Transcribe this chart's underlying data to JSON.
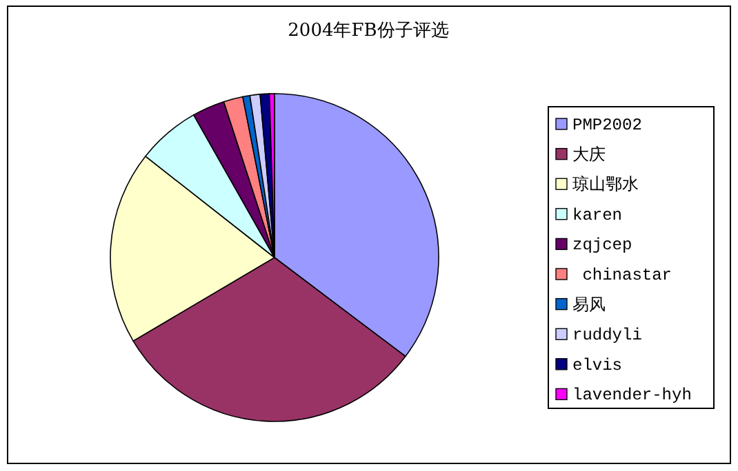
{
  "chart_data": {
    "type": "pie",
    "title": "2004年FB份子评选",
    "categories": [
      "PMP2002",
      "大庆",
      "琼山鄂水",
      "karen",
      "zqjcep",
      " chinastar",
      "易风",
      "ruddyli",
      "elvis",
      "lavender-hyh"
    ],
    "values": [
      35.3,
      31.2,
      19.1,
      6.2,
      3.2,
      1.9,
      0.7,
      1.0,
      0.9,
      0.5
    ],
    "colors": [
      "#9999ff",
      "#993366",
      "#ffffcc",
      "#ccffff",
      "#660066",
      "#ff8080",
      "#0066cc",
      "#ccccff",
      "#000080",
      "#ff00ff"
    ],
    "legend": "right"
  }
}
